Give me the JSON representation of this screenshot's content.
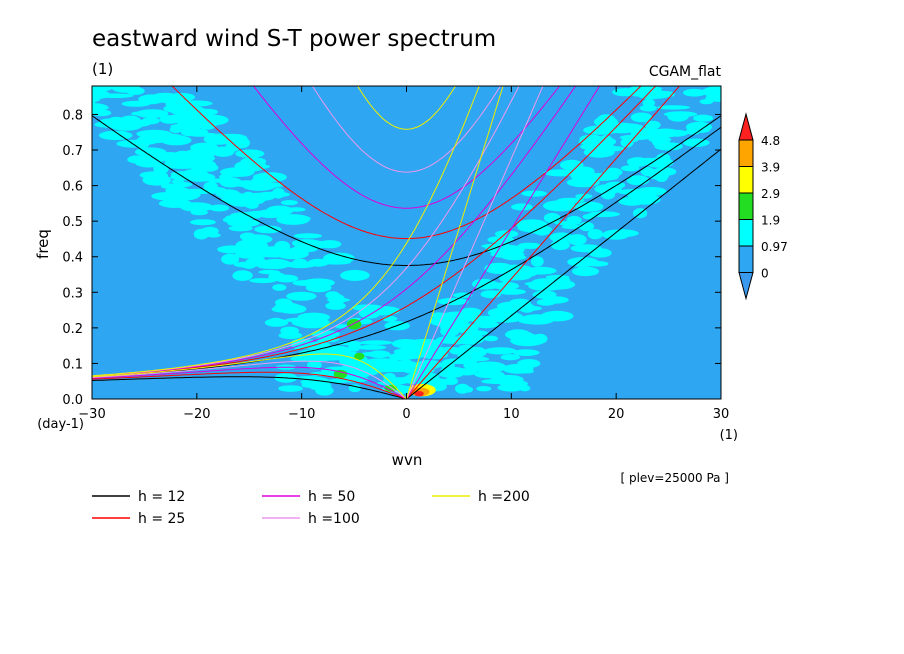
{
  "chart_data": {
    "type": "heatmap",
    "title": "eastward wind S-T power spectrum",
    "subtitle_left": "(1)",
    "subtitle_right": "CGAM_flat",
    "xlabel": "wvn",
    "ylabel": "freq",
    "x_unit": "(1)",
    "y_unit": "(day-1)",
    "xlim": [
      -30,
      30
    ],
    "ylim": [
      0,
      0.88
    ],
    "x_ticks": [
      -30,
      -20,
      -10,
      0,
      10,
      20,
      30
    ],
    "y_ticks": [
      0.0,
      0.1,
      0.2,
      0.3,
      0.4,
      0.5,
      0.6,
      0.7,
      0.8
    ],
    "annotation": "[ plev=25000 Pa ]",
    "colorbar": {
      "levels": [
        "0",
        "0.97",
        "1.9",
        "2.9",
        "3.9",
        "4.8"
      ],
      "colors": [
        "#3a9af0",
        "#2ea6f2",
        "#00ffff",
        "#22dd22",
        "#ffff00",
        "#ffa500",
        "#ff2020"
      ]
    },
    "background_color": "#2ea6f2",
    "contour_color": "#00ffff",
    "dispersion_curves": [
      {
        "label": "h = 12",
        "h": 12,
        "color": "#000000"
      },
      {
        "label": "h = 25",
        "h": 25,
        "color": "#ff0000"
      },
      {
        "label": "h = 50",
        "h": 50,
        "color": "#dd00dd"
      },
      {
        "label": "h =100",
        "h": 100,
        "color": "#ee99ee"
      },
      {
        "label": "h =200",
        "h": 200,
        "color": "#eeee00"
      }
    ]
  }
}
